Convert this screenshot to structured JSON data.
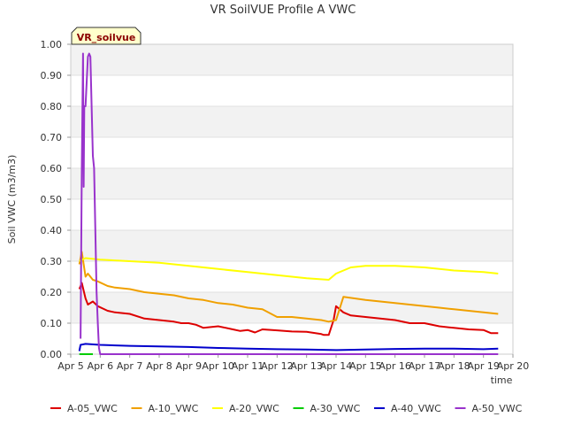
{
  "chart_data": {
    "type": "line",
    "title": "VR SoilVUE Profile A VWC",
    "xlabel": "time",
    "ylabel": "Soil VWC (m3/m3)",
    "badge": "VR_soilvue",
    "xlim": [
      "Apr 5",
      "Apr 20"
    ],
    "ylim": [
      0.0,
      1.0
    ],
    "x_ticks": [
      "Apr 5",
      "Apr 6",
      "Apr 7",
      "Apr 8",
      "Apr 9",
      "Apr 10",
      "Apr 11",
      "Apr 12",
      "Apr 13",
      "Apr 14",
      "Apr 15",
      "Apr 16",
      "Apr 17",
      "Apr 18",
      "Apr 19",
      "Apr 20"
    ],
    "y_ticks": [
      "0.00",
      "0.10",
      "0.20",
      "0.30",
      "0.40",
      "0.50",
      "0.60",
      "0.70",
      "0.80",
      "0.90",
      "1.00"
    ],
    "grid": "alternating horizontal bands",
    "legend_position": "bottom",
    "series": [
      {
        "name": "A-05_VWC",
        "color": "#dd0000",
        "x": [
          "Apr 5 07:00",
          "Apr 5 09:00",
          "Apr 5 12:00",
          "Apr 5 14:00",
          "Apr 5 18:00",
          "Apr 5 22:00",
          "Apr 6 06:00",
          "Apr 6 12:00",
          "Apr 7 00:00",
          "Apr 7 12:00",
          "Apr 8 00:00",
          "Apr 8 12:00",
          "Apr 8 18:00",
          "Apr 9 00:00",
          "Apr 9 06:00",
          "Apr 9 12:00",
          "Apr 10 00:00",
          "Apr 10 12:00",
          "Apr 10 18:00",
          "Apr 11 00:00",
          "Apr 11 06:00",
          "Apr 11 12:00",
          "Apr 12 00:00",
          "Apr 12 12:00",
          "Apr 13 00:00",
          "Apr 13 12:00",
          "Apr 13 14:00",
          "Apr 13 18:00",
          "Apr 13 22:00",
          "Apr 14 00:00",
          "Apr 14 06:00",
          "Apr 14 12:00",
          "Apr 15 00:00",
          "Apr 15 12:00",
          "Apr 16 00:00",
          "Apr 16 12:00",
          "Apr 17 00:00",
          "Apr 17 12:00",
          "Apr 18 00:00",
          "Apr 18 12:00",
          "Apr 19 00:00",
          "Apr 19 06:00",
          "Apr 19 12:00"
        ],
        "y": [
          0.21,
          0.23,
          0.18,
          0.16,
          0.17,
          0.155,
          0.14,
          0.135,
          0.13,
          0.115,
          0.11,
          0.105,
          0.1,
          0.1,
          0.095,
          0.085,
          0.09,
          0.08,
          0.075,
          0.078,
          0.07,
          0.08,
          0.077,
          0.073,
          0.072,
          0.065,
          0.062,
          0.062,
          0.11,
          0.155,
          0.135,
          0.125,
          0.12,
          0.115,
          0.11,
          0.1,
          0.1,
          0.09,
          0.085,
          0.08,
          0.078,
          0.068,
          0.068
        ]
      },
      {
        "name": "A-10_VWC",
        "color": "#f0a000",
        "x": [
          "Apr 5 07:00",
          "Apr 5 09:00",
          "Apr 5 12:00",
          "Apr 5 14:00",
          "Apr 5 18:00",
          "Apr 5 22:00",
          "Apr 6 06:00",
          "Apr 6 12:00",
          "Apr 7 00:00",
          "Apr 7 12:00",
          "Apr 8 00:00",
          "Apr 8 12:00",
          "Apr 9 00:00",
          "Apr 9 12:00",
          "Apr 10 00:00",
          "Apr 10 12:00",
          "Apr 11 00:00",
          "Apr 11 12:00",
          "Apr 12 00:00",
          "Apr 12 12:00",
          "Apr 13 00:00",
          "Apr 13 12:00",
          "Apr 13 18:00",
          "Apr 14 00:00",
          "Apr 14 06:00",
          "Apr 15 00:00",
          "Apr 15 12:00",
          "Apr 16 00:00",
          "Apr 16 12:00",
          "Apr 17 00:00",
          "Apr 17 12:00",
          "Apr 18 00:00",
          "Apr 18 12:00",
          "Apr 19 00:00",
          "Apr 19 12:00"
        ],
        "y": [
          0.29,
          0.33,
          0.25,
          0.26,
          0.24,
          0.235,
          0.22,
          0.215,
          0.21,
          0.2,
          0.195,
          0.19,
          0.18,
          0.175,
          0.165,
          0.16,
          0.15,
          0.145,
          0.12,
          0.12,
          0.115,
          0.11,
          0.105,
          0.11,
          0.185,
          0.175,
          0.17,
          0.165,
          0.16,
          0.155,
          0.15,
          0.145,
          0.14,
          0.135,
          0.13
        ]
      },
      {
        "name": "A-20_VWC",
        "color": "#ffff00",
        "x": [
          "Apr 5 07:00",
          "Apr 5 12:00",
          "Apr 6 00:00",
          "Apr 7 00:00",
          "Apr 8 00:00",
          "Apr 9 00:00",
          "Apr 10 00:00",
          "Apr 11 00:00",
          "Apr 12 00:00",
          "Apr 13 00:00",
          "Apr 13 18:00",
          "Apr 14 00:00",
          "Apr 14 12:00",
          "Apr 15 00:00",
          "Apr 16 00:00",
          "Apr 17 00:00",
          "Apr 18 00:00",
          "Apr 19 00:00",
          "Apr 19 12:00"
        ],
        "y": [
          0.3,
          0.31,
          0.305,
          0.3,
          0.295,
          0.285,
          0.275,
          0.265,
          0.255,
          0.245,
          0.24,
          0.26,
          0.28,
          0.285,
          0.285,
          0.28,
          0.27,
          0.265,
          0.26
        ]
      },
      {
        "name": "A-30_VWC",
        "color": "#00cc00",
        "x": [
          "Apr 5 07:00",
          "Apr 5 12:00",
          "Apr 5 18:00"
        ],
        "y": [
          0.0,
          0.0,
          0.0
        ]
      },
      {
        "name": "A-40_VWC",
        "color": "#0000cc",
        "x": [
          "Apr 5 07:00",
          "Apr 5 08:00",
          "Apr 5 12:00",
          "Apr 6 00:00",
          "Apr 7 00:00",
          "Apr 8 00:00",
          "Apr 9 00:00",
          "Apr 10 00:00",
          "Apr 11 00:00",
          "Apr 12 00:00",
          "Apr 13 00:00",
          "Apr 14 00:00",
          "Apr 15 00:00",
          "Apr 16 00:00",
          "Apr 17 00:00",
          "Apr 18 00:00",
          "Apr 19 00:00",
          "Apr 19 12:00"
        ],
        "y": [
          0.01,
          0.03,
          0.033,
          0.03,
          0.027,
          0.025,
          0.023,
          0.02,
          0.018,
          0.016,
          0.015,
          0.013,
          0.015,
          0.017,
          0.018,
          0.018,
          0.016,
          0.018
        ]
      },
      {
        "name": "A-50_VWC",
        "color": "#9933cc",
        "x": [
          "Apr 5 08:00",
          "Apr 5 09:00",
          "Apr 5 10:00",
          "Apr 5 10:30",
          "Apr 5 11:00",
          "Apr 5 12:00",
          "Apr 5 14:00",
          "Apr 5 15:00",
          "Apr 5 16:00",
          "Apr 5 17:00",
          "Apr 5 18:00",
          "Apr 5 19:00",
          "Apr 5 20:00",
          "Apr 5 21:00",
          "Apr 5 22:00",
          "Apr 5 23:00",
          "Apr 6 00:00",
          "Apr 6 00:30",
          "Apr 6 12:00",
          "Apr 19 12:00"
        ],
        "y": [
          0.05,
          0.6,
          0.97,
          0.54,
          0.8,
          0.8,
          0.96,
          0.97,
          0.96,
          0.8,
          0.64,
          0.6,
          0.4,
          0.2,
          0.1,
          0.02,
          0.0,
          0.0,
          0.0,
          0.0
        ]
      }
    ]
  }
}
